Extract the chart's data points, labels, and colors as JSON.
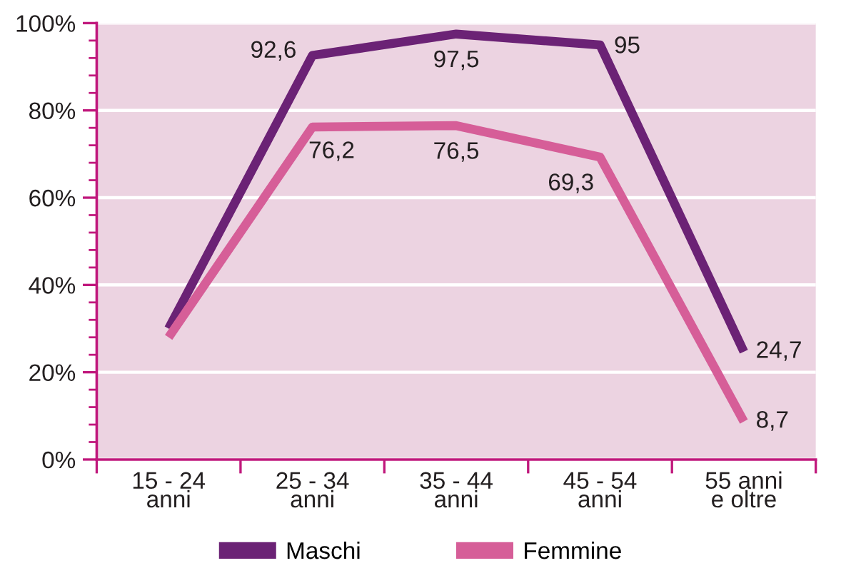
{
  "chart_data": {
    "type": "line",
    "categories": [
      "15 - 24\nanni",
      "25 - 34\nanni",
      "35 - 44\nanni",
      "45 - 54\nanni",
      "55 anni\ne oltre"
    ],
    "series": [
      {
        "name": "Maschi",
        "color": "#6b2275",
        "values": [
          30,
          92.6,
          97.5,
          95,
          24.7
        ],
        "value_labels": [
          null,
          "92,6",
          "97,5",
          "95",
          "24,7"
        ]
      },
      {
        "name": "Femmine",
        "color": "#d65e98",
        "values": [
          28,
          76.2,
          76.5,
          69.3,
          8.7
        ],
        "value_labels": [
          null,
          "76,2",
          "76,5",
          "69,3",
          "8,7"
        ]
      }
    ],
    "ylim": [
      0,
      100
    ],
    "yticks": [
      {
        "value": 0,
        "label": "0%"
      },
      {
        "value": 20,
        "label": "20%"
      },
      {
        "value": 40,
        "label": "40%"
      },
      {
        "value": 60,
        "label": "60%"
      },
      {
        "value": 80,
        "label": "80%"
      },
      {
        "value": 100,
        "label": "100%"
      }
    ],
    "grid": "y",
    "legend": "bottom",
    "line_style": "solid"
  }
}
